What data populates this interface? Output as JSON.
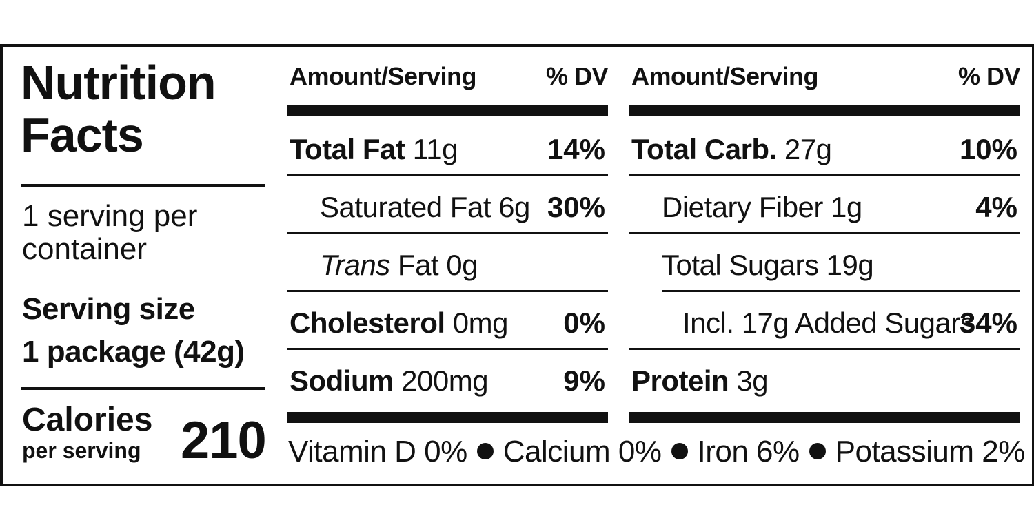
{
  "title": "Nutrition Facts",
  "servings_per_container": "1 serving per container",
  "serving_size_label": "Serving size",
  "serving_size_value": "1 package (42g)",
  "calories_label": "Calories",
  "calories_sublabel": "per serving",
  "calories_value": "210",
  "header": {
    "amount_label": "Amount/Serving",
    "dv_label": "% DV"
  },
  "left_column": [
    {
      "name": "Total Fat",
      "amount": "11g",
      "dv": "14%"
    },
    {
      "name": "Saturated Fat 6g",
      "amount": "",
      "dv": "30%"
    },
    {
      "name_italic": "Trans",
      "name": " Fat 0g",
      "dv": ""
    },
    {
      "name": "Cholesterol",
      "amount": "0mg",
      "dv": "0%"
    },
    {
      "name": "Sodium",
      "amount": "200mg",
      "dv": "9%"
    }
  ],
  "right_column": [
    {
      "name": "Total Carb.",
      "amount": "27g",
      "dv": "10%"
    },
    {
      "name": "Dietary Fiber 1g",
      "amount": "",
      "dv": "4%"
    },
    {
      "name": "Total Sugars 19g",
      "amount": "",
      "dv": ""
    },
    {
      "name": "Incl. 17g Added Sugars",
      "amount": "",
      "dv": "34%"
    },
    {
      "name": "Protein",
      "amount": "3g",
      "dv": ""
    }
  ],
  "vitamins": [
    {
      "text": "Vitamin D 0%"
    },
    {
      "text": "Calcium 0%"
    },
    {
      "text": "Iron 6%"
    },
    {
      "text": "Potassium 2%"
    }
  ]
}
